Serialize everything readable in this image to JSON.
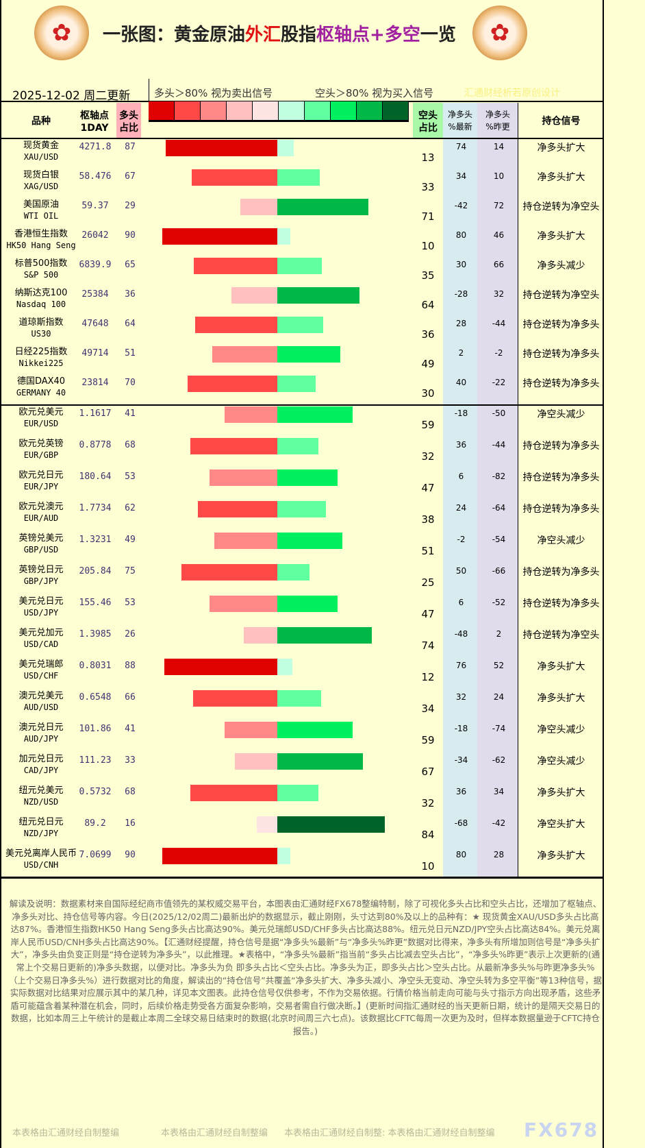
{
  "header": {
    "title_a": "一张图：黄金原油",
    "title_b": "外汇",
    "title_c": "股指",
    "title_d": "枢轴点+多空",
    "title_e": "一览",
    "date": "2025-12-02 周二更新",
    "long_legend": "多头＞80% 视为卖出信号",
    "short_legend": "空头＞80% 视为买入信号",
    "credit": "汇通财经析若原创设计"
  },
  "columns": {
    "name": "品种",
    "pivot_a": "枢轴点",
    "pivot_b": "1DAY",
    "long_a": "多头",
    "long_b": "占比",
    "short_a": "空头",
    "short_b": "占比",
    "net_latest_a": "净多头",
    "net_latest_b": "%最新",
    "net_prev_a": "净多头",
    "net_prev_b": "%昨更",
    "signal": "持仓信号"
  },
  "colors": {
    "long_scale": [
      "#e00000",
      "#ff4848",
      "#ff8888",
      "#ffc0c0",
      "#ffe4e4"
    ],
    "short_scale": [
      "#c0ffe0",
      "#60ffa0",
      "#00f060",
      "#00b848",
      "#006428"
    ],
    "bg": "#ffffd4",
    "net_latest_bg": "#d8ecf0",
    "net_prev_bg": "#e0dcec"
  },
  "rows": [
    {
      "cn": "现货黄金",
      "en": "XAU/USD",
      "pivot": "4271.8",
      "long": 87,
      "short": 13,
      "net_latest": "74",
      "net_prev": "14",
      "signal": "净多头扩大"
    },
    {
      "cn": "现货白银",
      "en": "XAG/USD",
      "pivot": "58.476",
      "long": 67,
      "short": 33,
      "net_latest": "34",
      "net_prev": "10",
      "signal": "净多头扩大"
    },
    {
      "cn": "美国原油",
      "en": "WTI OIL",
      "pivot": "59.37",
      "long": 29,
      "short": 71,
      "net_latest": "-42",
      "net_prev": "72",
      "signal": "持仓逆转为净空头"
    },
    {
      "cn": "香港恒生指数",
      "en": "HK50 Hang Seng",
      "pivot": "26042",
      "long": 90,
      "short": 10,
      "net_latest": "80",
      "net_prev": "46",
      "signal": "净多头扩大"
    },
    {
      "cn": "标普500指数",
      "en": "S&P 500",
      "pivot": "6839.9",
      "long": 65,
      "short": 35,
      "net_latest": "30",
      "net_prev": "66",
      "signal": "净多头减少"
    },
    {
      "cn": "纳斯达克100",
      "en": "Nasdaq 100",
      "pivot": "25384",
      "long": 36,
      "short": 64,
      "net_latest": "-28",
      "net_prev": "32",
      "signal": "持仓逆转为净空头"
    },
    {
      "cn": "道琼斯指数",
      "en": "US30",
      "pivot": "47648",
      "long": 64,
      "short": 36,
      "net_latest": "28",
      "net_prev": "-44",
      "signal": "持仓逆转为净多头"
    },
    {
      "cn": "日经225指数",
      "en": "Nikkei225",
      "pivot": "49714",
      "long": 51,
      "short": 49,
      "net_latest": "2",
      "net_prev": "-2",
      "signal": "持仓逆转为净多头"
    },
    {
      "cn": "德国DAX40",
      "en": "GERMANY 40",
      "pivot": "23814",
      "long": 70,
      "short": 30,
      "net_latest": "40",
      "net_prev": "-22",
      "signal": "持仓逆转为净多头"
    },
    {
      "cn": "欧元兑美元",
      "en": "EUR/USD",
      "pivot": "1.1617",
      "long": 41,
      "short": 59,
      "net_latest": "-18",
      "net_prev": "-50",
      "signal": "净空头减少"
    },
    {
      "cn": "欧元兑英镑",
      "en": "EUR/GBP",
      "pivot": "0.8778",
      "long": 68,
      "short": 32,
      "net_latest": "36",
      "net_prev": "-44",
      "signal": "持仓逆转为净多头"
    },
    {
      "cn": "欧元兑日元",
      "en": "EUR/JPY",
      "pivot": "180.64",
      "long": 53,
      "short": 47,
      "net_latest": "6",
      "net_prev": "-82",
      "signal": "持仓逆转为净多头"
    },
    {
      "cn": "欧元兑澳元",
      "en": "EUR/AUD",
      "pivot": "1.7734",
      "long": 62,
      "short": 38,
      "net_latest": "24",
      "net_prev": "-64",
      "signal": "持仓逆转为净多头"
    },
    {
      "cn": "英镑兑美元",
      "en": "GBP/USD",
      "pivot": "1.3231",
      "long": 49,
      "short": 51,
      "net_latest": "-2",
      "net_prev": "-54",
      "signal": "净空头减少"
    },
    {
      "cn": "英镑兑日元",
      "en": "GBP/JPY",
      "pivot": "205.84",
      "long": 75,
      "short": 25,
      "net_latest": "50",
      "net_prev": "-66",
      "signal": "持仓逆转为净多头"
    },
    {
      "cn": "美元兑日元",
      "en": "USD/JPY",
      "pivot": "155.46",
      "long": 53,
      "short": 47,
      "net_latest": "6",
      "net_prev": "-52",
      "signal": "持仓逆转为净多头"
    },
    {
      "cn": "美元兑加元",
      "en": "USD/CAD",
      "pivot": "1.3985",
      "long": 26,
      "short": 74,
      "net_latest": "-48",
      "net_prev": "2",
      "signal": "持仓逆转为净空头"
    },
    {
      "cn": "美元兑瑞郎",
      "en": "USD/CHF",
      "pivot": "0.8031",
      "long": 88,
      "short": 12,
      "net_latest": "76",
      "net_prev": "52",
      "signal": "净多头扩大"
    },
    {
      "cn": "澳元兑美元",
      "en": "AUD/USD",
      "pivot": "0.6548",
      "long": 66,
      "short": 34,
      "net_latest": "32",
      "net_prev": "24",
      "signal": "净多头扩大"
    },
    {
      "cn": "澳元兑日元",
      "en": "AUD/JPY",
      "pivot": "101.86",
      "long": 41,
      "short": 59,
      "net_latest": "-18",
      "net_prev": "-74",
      "signal": "净空头减少"
    },
    {
      "cn": "加元兑日元",
      "en": "CAD/JPY",
      "pivot": "111.23",
      "long": 33,
      "short": 67,
      "net_latest": "-34",
      "net_prev": "-62",
      "signal": "净空头减少"
    },
    {
      "cn": "纽元兑美元",
      "en": "NZD/USD",
      "pivot": "0.5732",
      "long": 68,
      "short": 32,
      "net_latest": "36",
      "net_prev": "34",
      "signal": "净多头扩大"
    },
    {
      "cn": "纽元兑日元",
      "en": "NZD/JPY",
      "pivot": "89.2",
      "long": 16,
      "short": 84,
      "net_latest": "-68",
      "net_prev": "-42",
      "signal": "净空头扩大"
    },
    {
      "cn": "美元兑离岸人民币",
      "en": "USD/CNH",
      "pivot": "7.0699",
      "long": 90,
      "short": 10,
      "net_latest": "80",
      "net_prev": "28",
      "signal": "净多头扩大"
    }
  ],
  "notes": "解读及说明：数据素材来自国际经纪商市值领先的某权威交易平台，本图表由汇通财经FX678整编特制，除了可视化多头占比和空头占比，还增加了枢轴点、净多头对比、持仓信号等内容。今日(2025/12/02周二)最新出炉的数据显示，截止刚刚，头寸达到80%及以上的品种有：★ 现货黄金XAU/USD多头占比高达87%。香港恒生指数HK50 Hang Seng多头占比高达90%。美元兑瑞郎USD/CHF多头占比高达88%。纽元兑日元NZD/JPY空头占比高达84%。美元兑离岸人民币USD/CNH多头占比高达90%。【汇通财经提醒，持仓信号是据“净多头%最新”与“净多头%昨更”数据对比得来，净多头有所增加则信号是“净多头扩大”，净多头由负变正则是“持仓逆转为净多头”，以此推理。★表格中，“净多头%最新”指当前“多头占比减去空头占比”，“净多头%昨更”表示上次更新的(通常上个交易日更新的)净多头数据，以便对比。净多头为负 即多头占比＜空头占比。净多头为正，即多头占比＞空头占比。从最新净多头%与昨更净多头%（上个交易日净多头%）进行数据对比的角度，解读出的“持仓信号”共覆盖“净多头扩大、净多头减小、净空头无变动、净空头转为多空平衡”等13种信号，据实际数据对比结果对应展示其中的某几种，详见本文图表。此持仓信号仅供参考，不作为交易依据。行情价格当前走向可能与头寸指示方向出现矛盾，这些矛盾可能蕴含着某种潜在机会，同时，后续价格走势受各方面复杂影响，交易者需自行做决断。】(更新时间指汇通财经的当天更新日期，统计的是隔天交易日的数据，比如本周三上午统计的是截止本周二全球交易日结束时的数据(北京时间周三六七点)。该数据比CFTC每周一次更为及时，但样本数据量逊于CFTC持仓报告。)",
  "footer": {
    "w1": "本表格由汇通财经自制整编",
    "w2": "本表格由汇通财经自制整编",
    "w3": "本表格由汇通财经自制整: 本表格由汇通财经自制整编",
    "brand": "FX678"
  }
}
